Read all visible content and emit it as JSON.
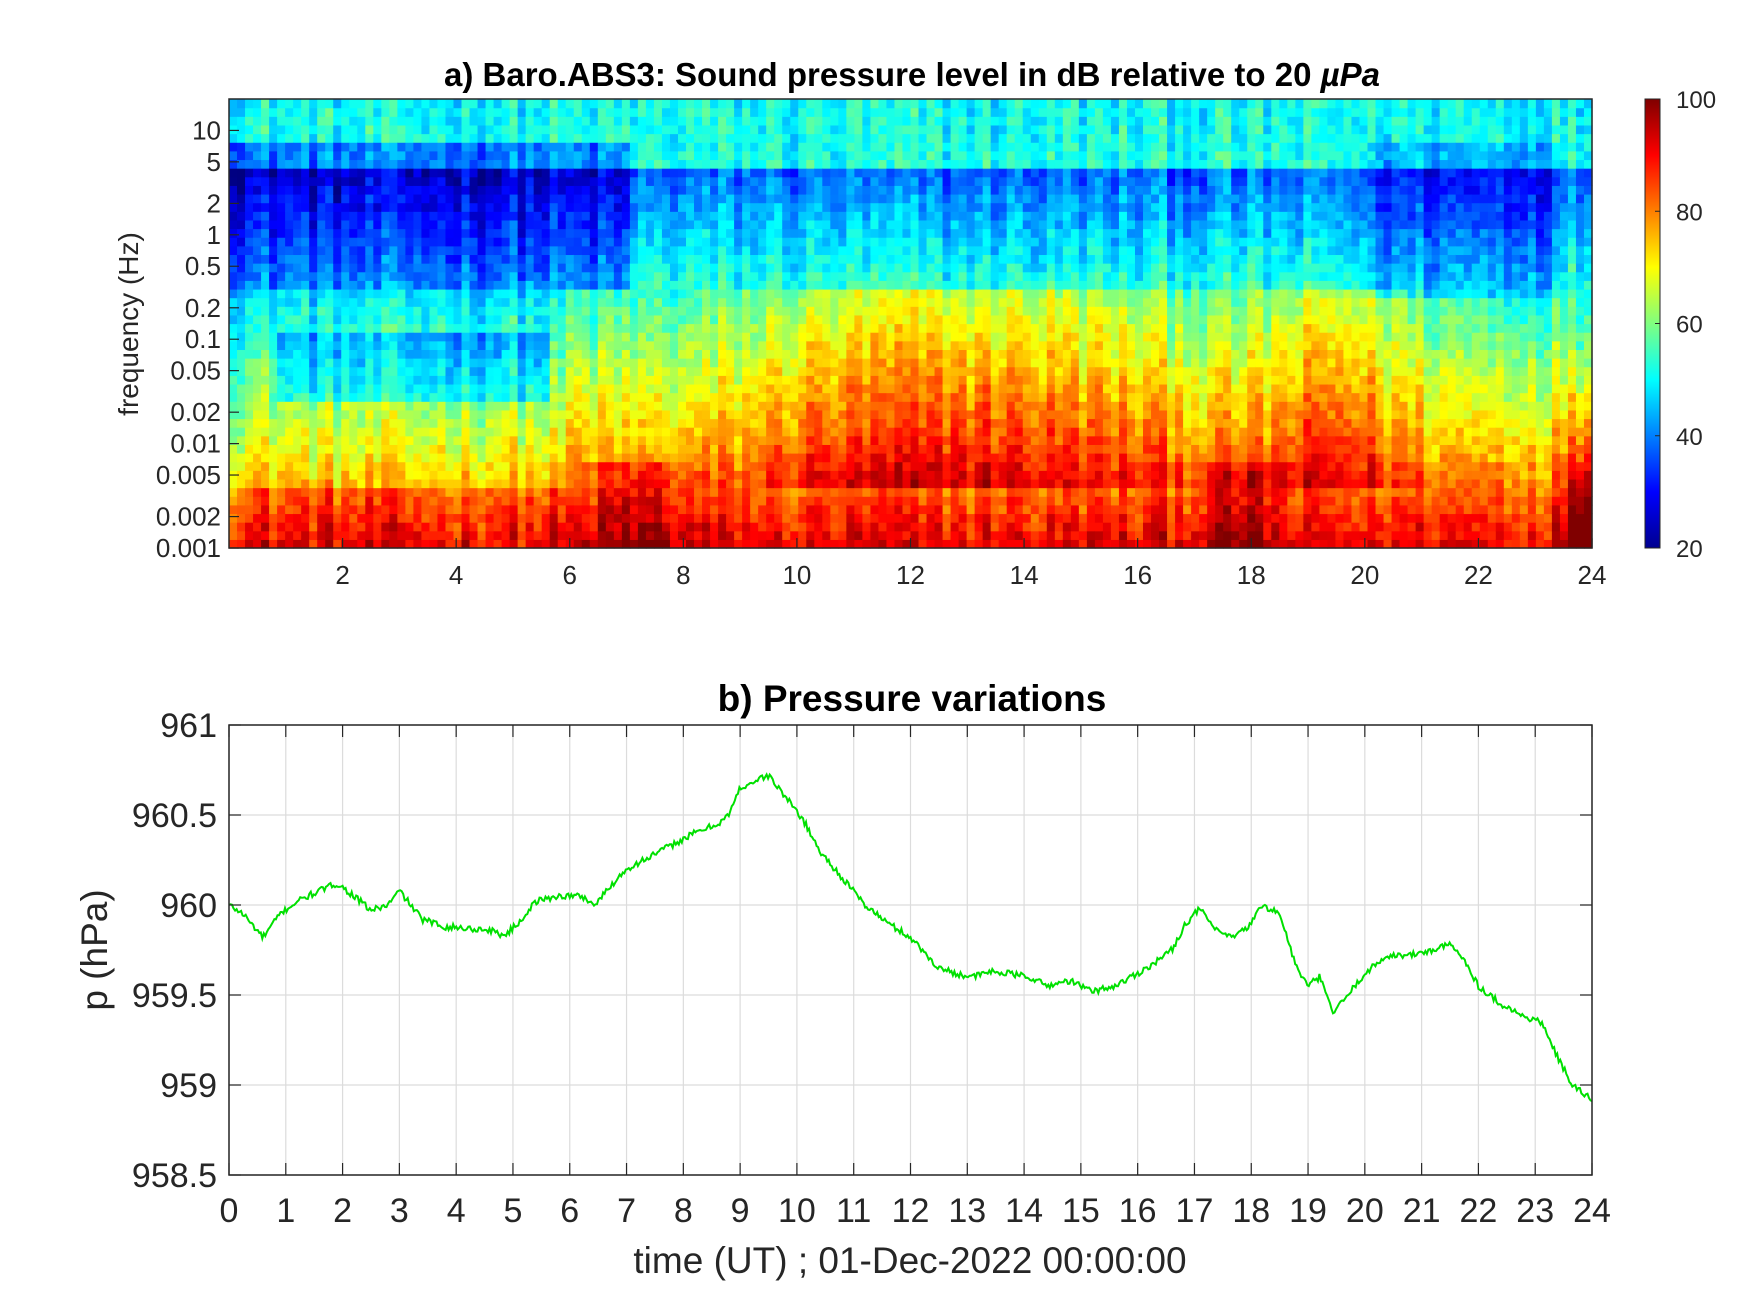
{
  "chart_data": [
    {
      "type": "heatmap",
      "title_prefix": "a) Baro.ABS3: Sound pressure level in dB relative to 20 ",
      "title_unit": "µPa",
      "ylabel": "frequency (Hz)",
      "xlim": [
        0,
        24
      ],
      "ylim_hz": [
        0.001,
        20
      ],
      "yscale": "log",
      "x_ticks": [
        "2",
        "4",
        "6",
        "8",
        "10",
        "12",
        "14",
        "16",
        "18",
        "20",
        "22",
        "24"
      ],
      "y_ticks": [
        "10",
        "5",
        "2",
        "1",
        "0.5",
        "0.2",
        "0.1",
        "0.05",
        "0.02",
        "0.01",
        "0.005",
        "0.002",
        "0.001"
      ],
      "colorbar": {
        "min": 20,
        "max": 100,
        "ticks": [
          "100",
          "80",
          "60",
          "40",
          "20"
        ],
        "colormap": "jet"
      },
      "grid": false
    },
    {
      "type": "line",
      "title": "b) Pressure variations",
      "ylabel": "p (hPa)",
      "xlabel": "time (UT) ; 01-Dec-2022 00:00:00",
      "xlim": [
        0,
        24
      ],
      "ylim": [
        958.5,
        961
      ],
      "x_ticks": [
        "0",
        "1",
        "2",
        "3",
        "4",
        "5",
        "6",
        "7",
        "8",
        "9",
        "10",
        "11",
        "12",
        "13",
        "14",
        "15",
        "16",
        "17",
        "18",
        "19",
        "20",
        "21",
        "22",
        "23",
        "24"
      ],
      "y_ticks": [
        "961",
        "960.5",
        "960",
        "959.5",
        "959",
        "958.5"
      ],
      "grid": true,
      "line_color": "#00e000",
      "x": [
        0,
        0.25,
        0.6,
        0.9,
        1.2,
        1.6,
        1.9,
        2.2,
        2.5,
        2.8,
        3.0,
        3.4,
        3.8,
        4.2,
        4.6,
        4.85,
        5.1,
        5.4,
        5.8,
        6.2,
        6.45,
        6.7,
        7.0,
        7.3,
        7.6,
        7.9,
        8.2,
        8.6,
        8.8,
        9.0,
        9.2,
        9.5,
        9.8,
        10.1,
        10.4,
        10.8,
        11.2,
        11.6,
        12.0,
        12.2,
        12.5,
        12.8,
        13.1,
        13.4,
        13.7,
        14.1,
        14.4,
        14.8,
        15.2,
        15.6,
        16.0,
        16.3,
        16.6,
        16.85,
        17.1,
        17.4,
        17.7,
        17.95,
        18.2,
        18.5,
        18.8,
        19.0,
        19.2,
        19.45,
        19.7,
        20.0,
        20.4,
        20.8,
        21.2,
        21.5,
        21.75,
        22.0,
        22.4,
        22.8,
        23.1,
        23.4,
        23.65,
        23.85,
        24.0
      ],
      "y": [
        960.0,
        959.95,
        959.82,
        959.95,
        960.02,
        960.08,
        960.12,
        960.05,
        959.97,
        960.0,
        960.08,
        959.92,
        959.88,
        959.87,
        959.86,
        959.83,
        959.9,
        960.02,
        960.05,
        960.05,
        960.0,
        960.1,
        960.2,
        960.25,
        960.3,
        960.35,
        960.4,
        960.45,
        960.5,
        960.65,
        960.68,
        960.72,
        960.6,
        960.48,
        960.3,
        960.15,
        960.0,
        959.9,
        959.82,
        959.75,
        959.65,
        959.62,
        959.6,
        959.63,
        959.62,
        959.6,
        959.55,
        959.58,
        959.52,
        959.55,
        959.62,
        959.68,
        959.75,
        959.9,
        959.98,
        959.85,
        959.82,
        959.88,
        960.0,
        959.95,
        959.65,
        959.55,
        959.6,
        959.4,
        959.5,
        959.62,
        959.72,
        959.72,
        959.75,
        959.78,
        959.7,
        959.55,
        959.45,
        959.38,
        959.35,
        959.15,
        959.0,
        958.95,
        958.92
      ],
      "noise": 0.018
    }
  ]
}
